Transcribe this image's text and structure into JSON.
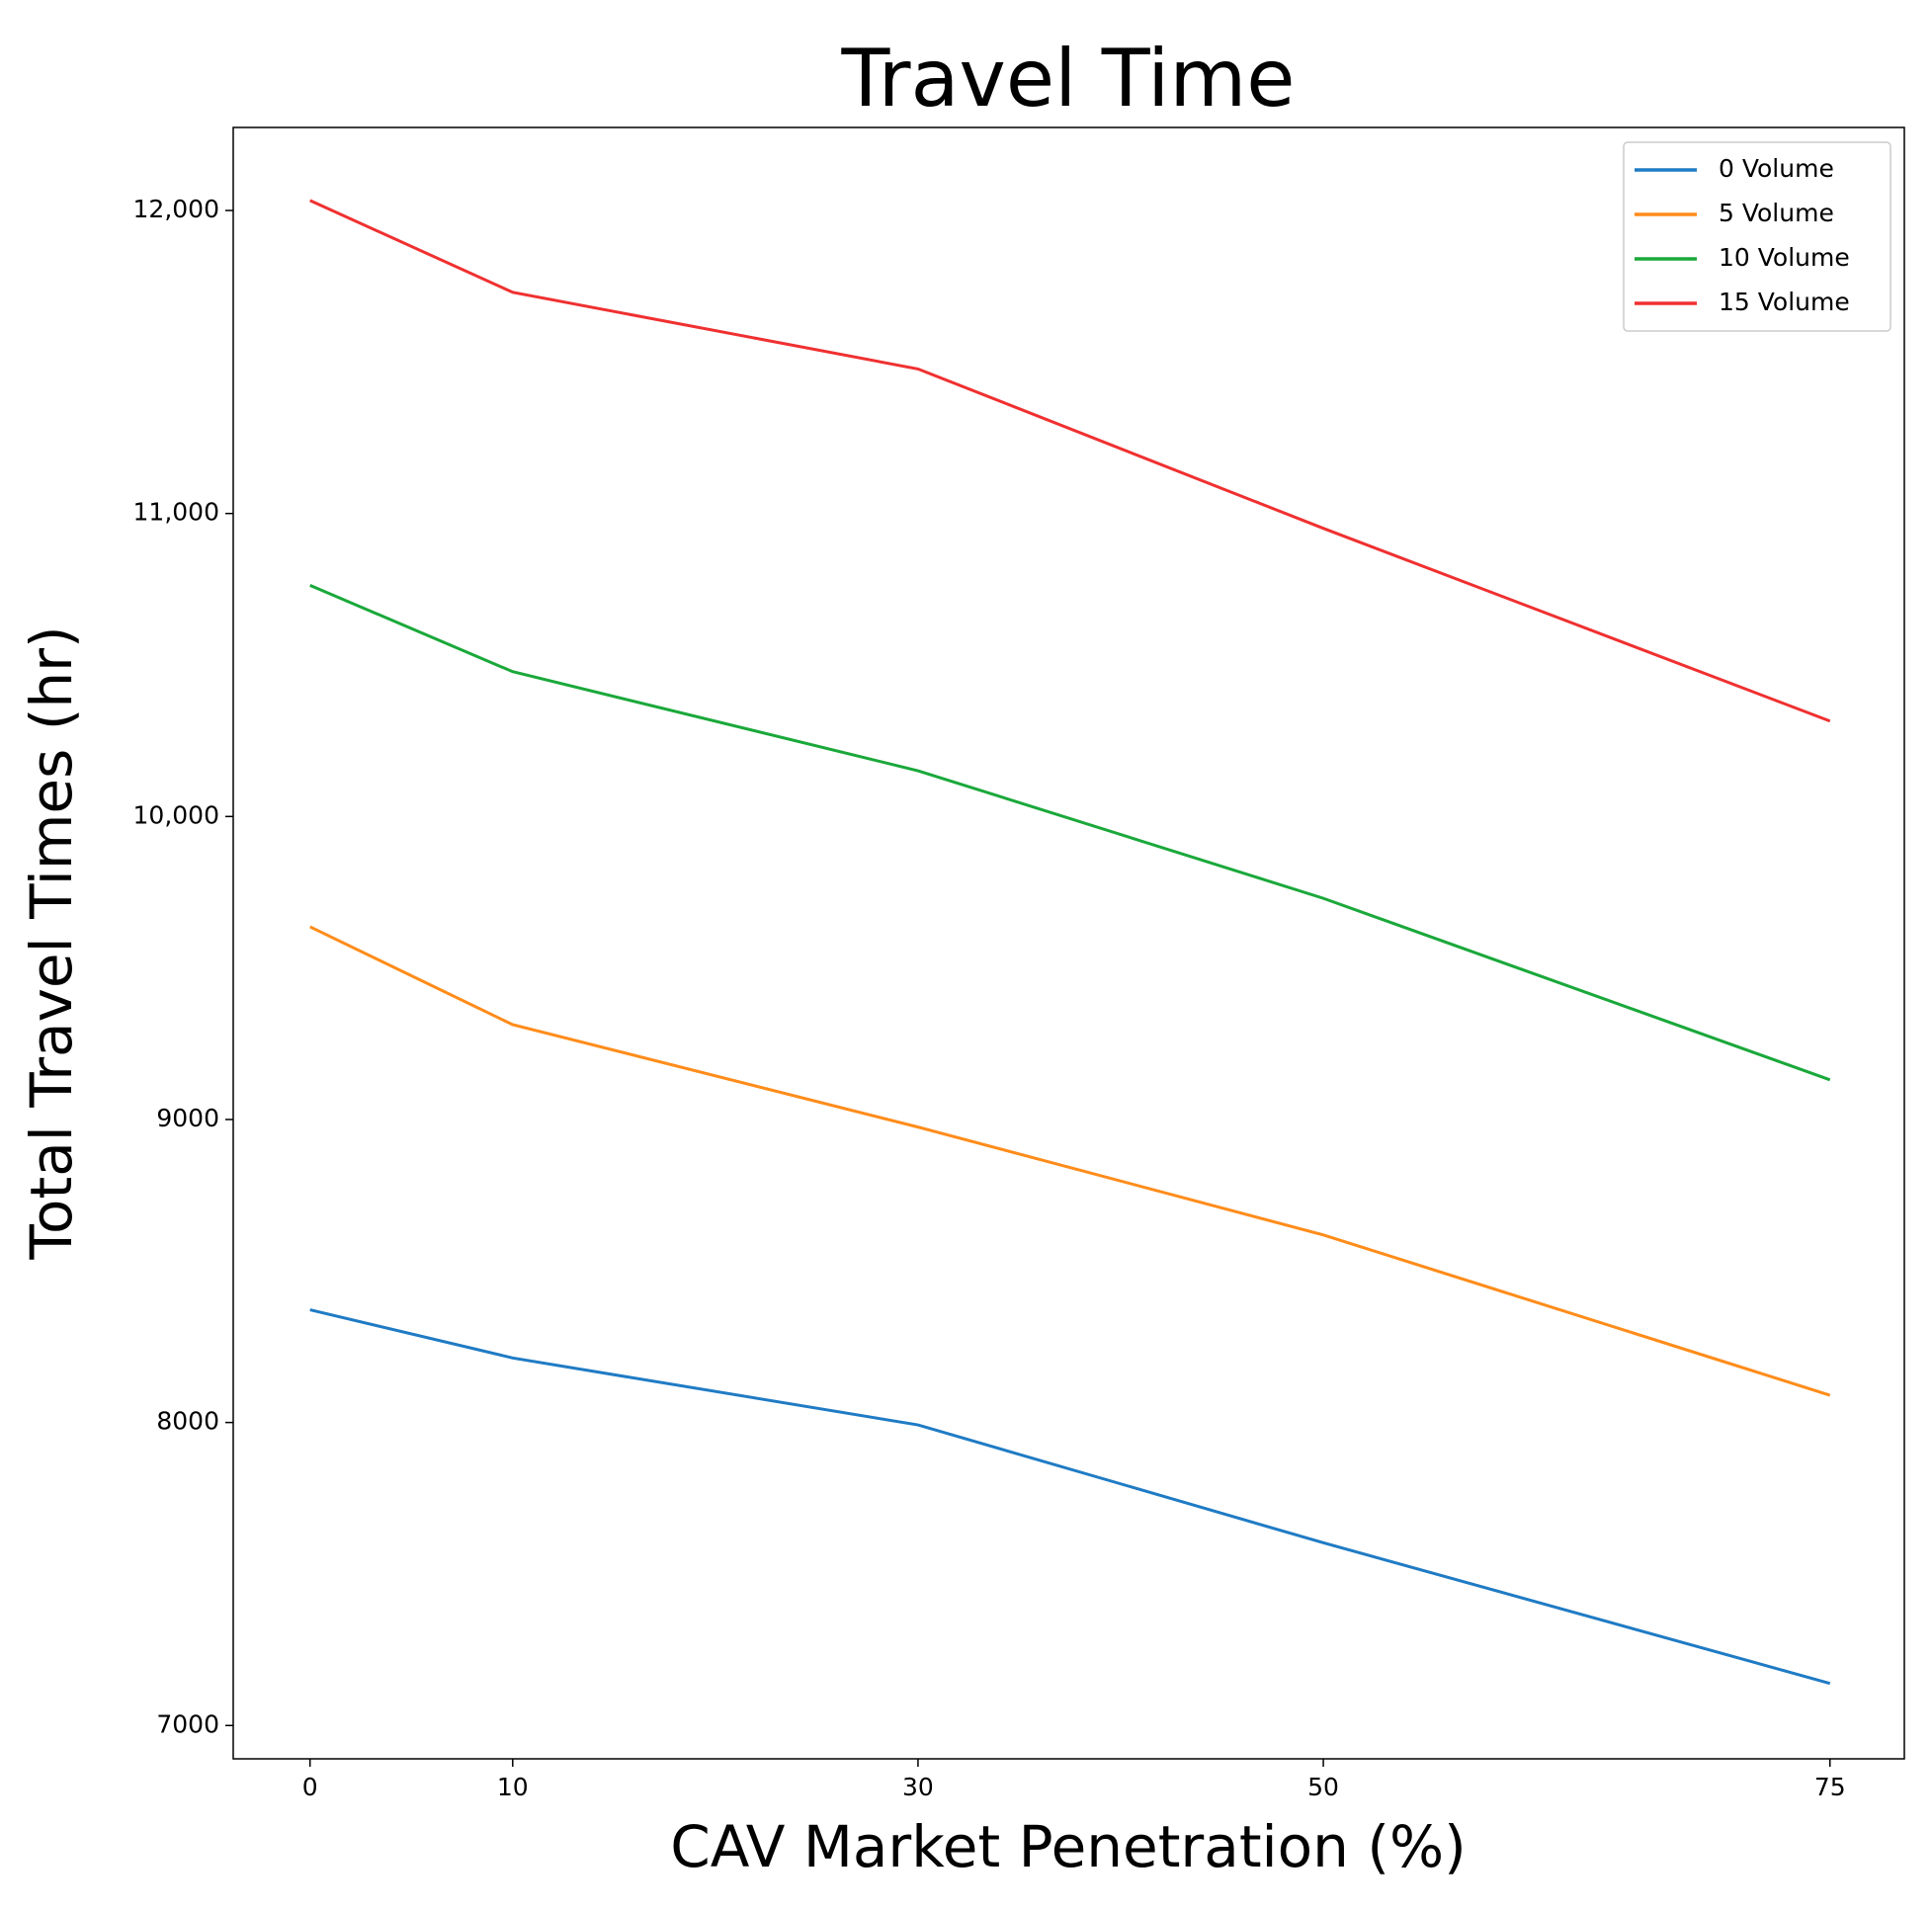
{
  "chart_data": {
    "type": "line",
    "title": "Travel Time",
    "x_label": "CAV Market Penetration (%)",
    "y_label": "Total Travel Times (hr)",
    "x": [
      0,
      10,
      30,
      50,
      75
    ],
    "series": [
      {
        "name": "0 Volume",
        "color": "#1f7bc4",
        "values": [
          8372,
          8213,
          7992,
          7603,
          7139
        ]
      },
      {
        "name": "5 Volume",
        "color": "#ff8c1a",
        "values": [
          9636,
          9313,
          8975,
          8619,
          8090
        ]
      },
      {
        "name": "10 Volume",
        "color": "#1aa83a",
        "values": [
          10763,
          10478,
          10151,
          9730,
          9131
        ]
      },
      {
        "name": "15 Volume",
        "color": "#f03030",
        "values": [
          12033,
          11730,
          11477,
          10951,
          10315
        ]
      }
    ],
    "xlim": [
      -3.79,
      78.67
    ],
    "xticks": [
      0,
      10,
      30,
      50,
      75
    ],
    "ylim": [
      6890,
      12274
    ],
    "yticks": [
      7000,
      8000,
      9000,
      {
        "value": 10000,
        "label": "10,000"
      },
      {
        "value": 11000,
        "label": "11,000"
      },
      {
        "value": 12000,
        "label": "12,000"
      }
    ],
    "grid": false,
    "legend": "upper right"
  }
}
